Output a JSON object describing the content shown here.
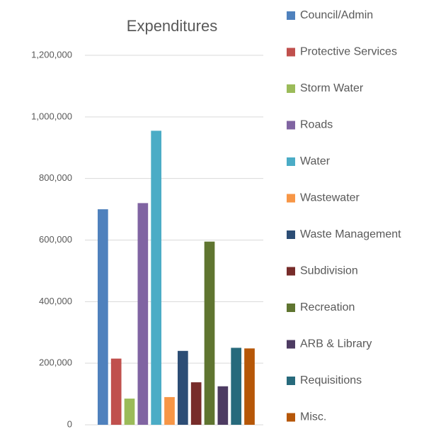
{
  "chart_data": {
    "type": "bar",
    "title": "Expenditures",
    "series": [
      {
        "name": "Council/Admin",
        "color": "#4f81bd",
        "values": [
          700000
        ]
      },
      {
        "name": "Protective Services",
        "color": "#c0504d",
        "values": [
          215000
        ]
      },
      {
        "name": "Storm Water",
        "color": "#9bbb59",
        "values": [
          85000
        ]
      },
      {
        "name": "Roads",
        "color": "#8064a2",
        "values": [
          720000
        ]
      },
      {
        "name": "Water",
        "color": "#4bacc6",
        "values": [
          955000
        ]
      },
      {
        "name": "Wastewater",
        "color": "#f79646",
        "values": [
          90000
        ]
      },
      {
        "name": "Waste Management",
        "color": "#2c4d75",
        "values": [
          240000
        ]
      },
      {
        "name": "Subdivision",
        "color": "#772c2a",
        "values": [
          138000
        ]
      },
      {
        "name": "Recreation",
        "color": "#5f7530",
        "values": [
          595000
        ]
      },
      {
        "name": "ARB & Library",
        "color": "#4d3b62",
        "values": [
          125000
        ]
      },
      {
        "name": "Requisitions",
        "color": "#276a7c",
        "values": [
          250000
        ]
      },
      {
        "name": "Misc.",
        "color": "#b65708",
        "values": [
          248000
        ]
      }
    ],
    "ylim": [
      0,
      1200000
    ],
    "yticks": [
      0,
      {
        "value": 200000,
        "label": "200,000"
      },
      {
        "value": 400000,
        "label": "400,000"
      },
      {
        "value": 600000,
        "label": "600,000"
      },
      {
        "value": 800000,
        "label": "800,000"
      },
      {
        "value": 1000000,
        "label": "1,000,000"
      },
      {
        "value": 1200000,
        "label": "1,200,000"
      }
    ],
    "grid": true,
    "legend": "right"
  }
}
